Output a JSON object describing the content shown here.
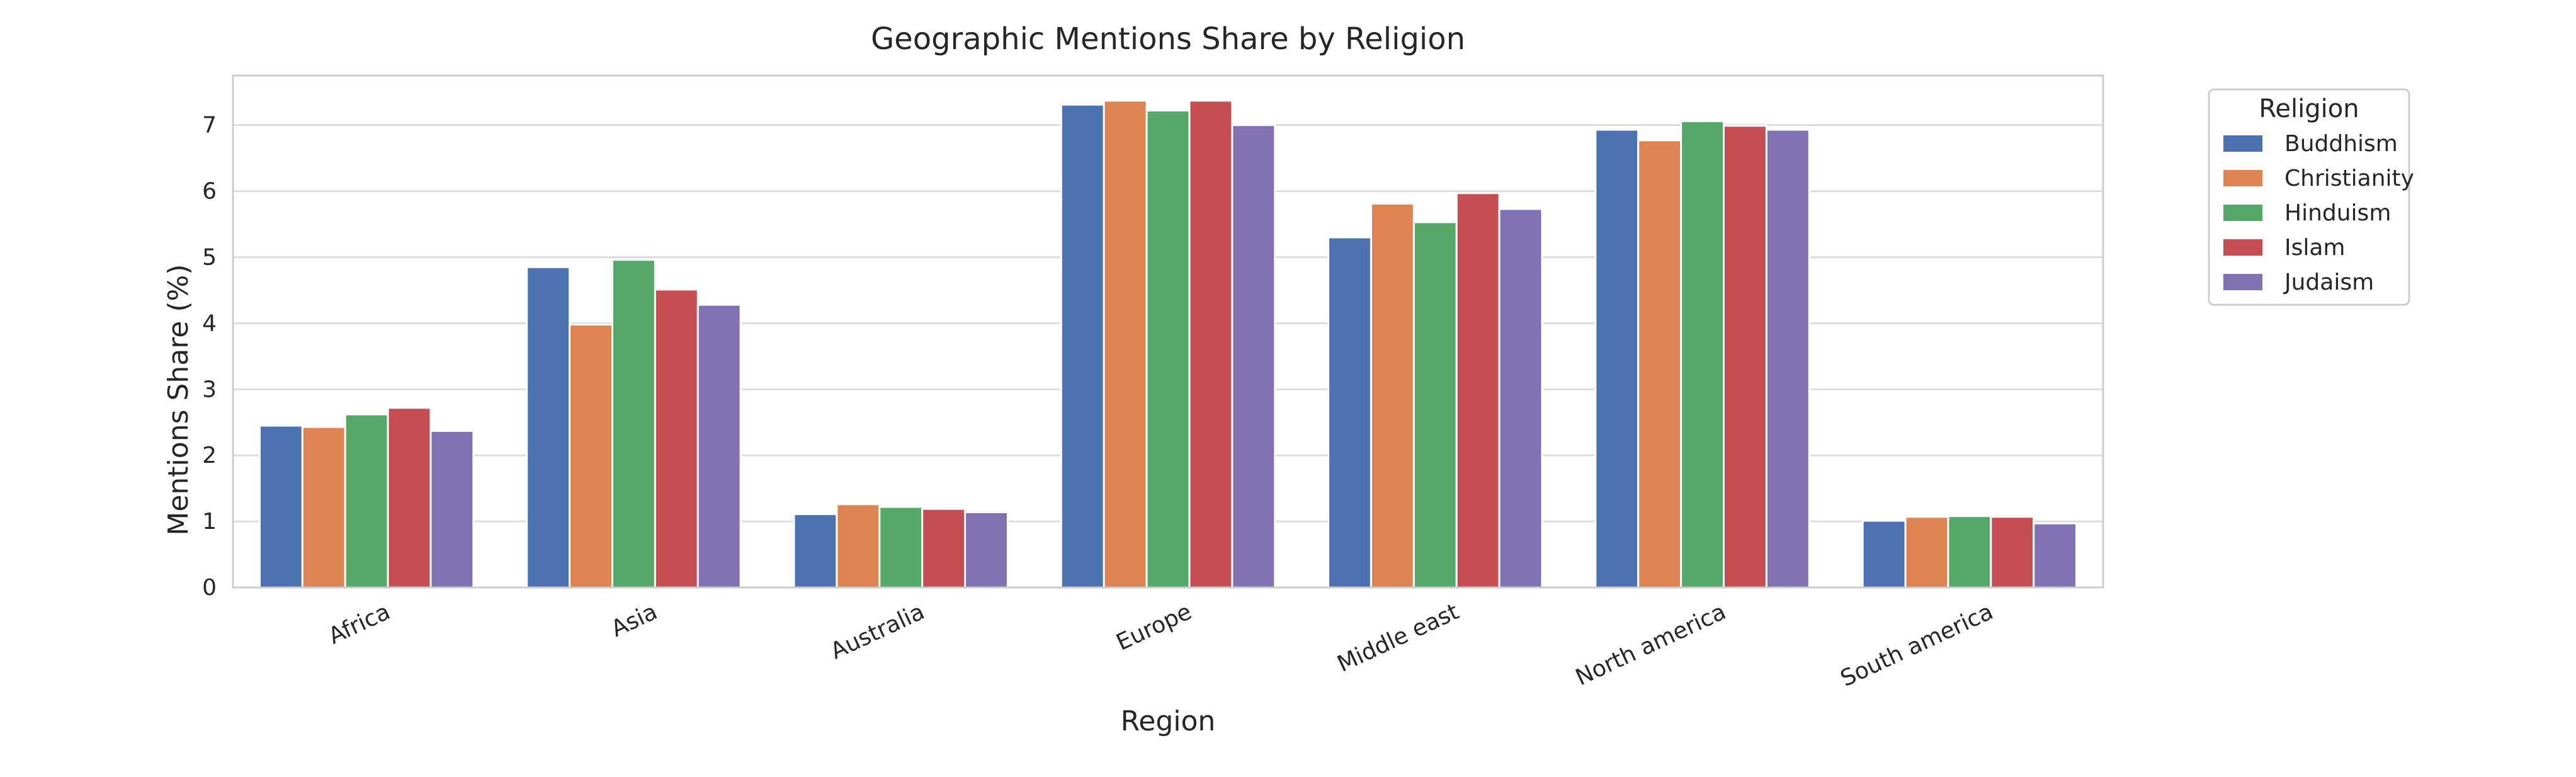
{
  "chart_data": {
    "type": "bar",
    "title": "Geographic Mentions Share by Religion",
    "xlabel": "Region",
    "ylabel": "Mentions Share (%)",
    "ylim": [
      0,
      7.75
    ],
    "yticks": [
      "0",
      "1",
      "2",
      "3",
      "4",
      "5",
      "6",
      "7"
    ],
    "grid": true,
    "legend_title": "Religion",
    "legend_position": "upper right, outside plot area",
    "categories": [
      "Africa",
      "Asia",
      "Australia",
      "Europe",
      "Middle east",
      "North america",
      "South america"
    ],
    "series": [
      {
        "name": "Buddhism",
        "color": "#4c72b0",
        "values": [
          2.45,
          4.85,
          1.11,
          7.31,
          5.3,
          6.93,
          1.01
        ]
      },
      {
        "name": "Christianity",
        "color": "#dd8452",
        "values": [
          2.43,
          3.98,
          1.26,
          7.37,
          5.81,
          6.77,
          1.07
        ]
      },
      {
        "name": "Hinduism",
        "color": "#55a868",
        "values": [
          2.62,
          4.96,
          1.22,
          7.22,
          5.53,
          7.06,
          1.08
        ]
      },
      {
        "name": "Islam",
        "color": "#c44e52",
        "values": [
          2.72,
          4.51,
          1.19,
          7.37,
          5.97,
          6.99,
          1.07
        ]
      },
      {
        "name": "Judaism",
        "color": "#8172b3",
        "values": [
          2.37,
          4.28,
          1.14,
          7.0,
          5.73,
          6.93,
          0.97
        ]
      }
    ]
  }
}
